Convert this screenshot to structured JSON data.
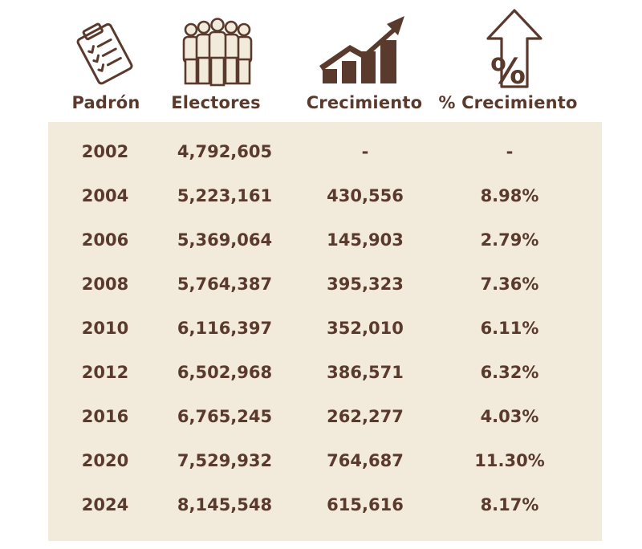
{
  "colors": {
    "text": "#5a3a2c",
    "panel_background": "#f2ebdb",
    "page_background": "#ffffff"
  },
  "headers": {
    "padron": "Padrón",
    "electores": "Electores",
    "crecimiento": "Crecimiento",
    "pct_crecimiento": "% Crecimiento"
  },
  "icons": {
    "padron": "clipboard-checklist-icon",
    "electores": "crowd-of-people-icon",
    "crecimiento": "growth-bar-chart-arrow-icon",
    "pct_crecimiento": "percent-up-arrow-icon"
  },
  "chart_data": {
    "type": "table",
    "columns": [
      "Padrón",
      "Electores",
      "Crecimiento",
      "% Crecimiento"
    ],
    "rows": [
      [
        "2002",
        "4,792,605",
        "-",
        "-"
      ],
      [
        "2004",
        "5,223,161",
        "430,556",
        "8.98%"
      ],
      [
        "2006",
        "5,369,064",
        "145,903",
        "2.79%"
      ],
      [
        "2008",
        "5,764,387",
        "395,323",
        "7.36%"
      ],
      [
        "2010",
        "6,116,397",
        "352,010",
        "6.11%"
      ],
      [
        "2012",
        "6,502,968",
        "386,571",
        "6.32%"
      ],
      [
        "2016",
        "6,765,245",
        "262,277",
        "4.03%"
      ],
      [
        "2020",
        "7,529,932",
        "764,687",
        "11.30%"
      ],
      [
        "2024",
        "8,145,548",
        "615,616",
        "8.17%"
      ]
    ]
  }
}
